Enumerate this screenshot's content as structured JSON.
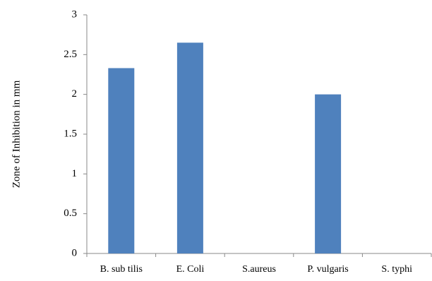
{
  "chart_data": {
    "type": "bar",
    "title": "",
    "xlabel": "",
    "ylabel": "Zone of Inhibition in mm",
    "categories": [
      "B. sub tilis",
      "E. Coli",
      "S.aureus",
      "P. vulgaris",
      "S. typhi"
    ],
    "values": [
      2.33,
      2.65,
      0,
      2.0,
      0
    ],
    "ylim": [
      0,
      3
    ],
    "yticks": [
      "0",
      "0.5",
      "1",
      "1.5",
      "2",
      "2.5",
      "3"
    ],
    "grid": false,
    "legend": "none",
    "colors": {
      "bar": "#4f81bd",
      "axis": "#888888",
      "text": "#000000"
    }
  }
}
